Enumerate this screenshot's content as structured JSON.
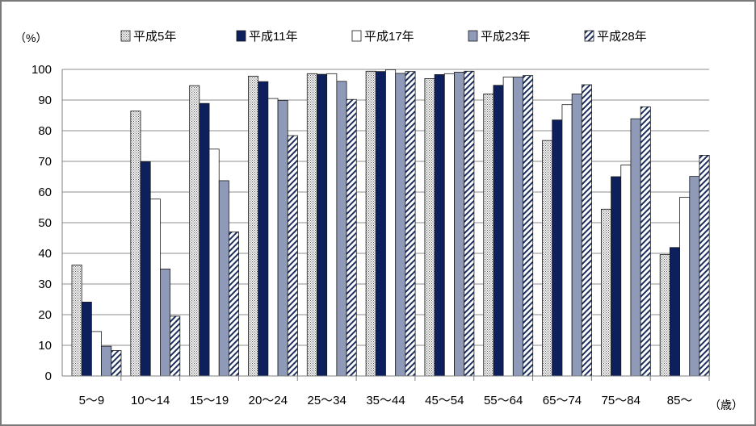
{
  "chart_data": {
    "type": "bar",
    "ylabel": "（%）",
    "xlabel": "（歳）",
    "ylim": [
      0,
      100
    ],
    "yticks": [
      0,
      10,
      20,
      30,
      40,
      50,
      60,
      70,
      80,
      90,
      100
    ],
    "grid": true,
    "legend_position": "top",
    "categories": [
      "5～9",
      "10～14",
      "15～19",
      "20～24",
      "25～34",
      "35～44",
      "45～54",
      "55～64",
      "65～74",
      "75～84",
      "85～"
    ],
    "series": [
      {
        "name": "平成5年",
        "values": [
          36.2,
          86.4,
          94.7,
          97.8,
          98.6,
          99.4,
          97.0,
          92.0,
          76.8,
          54.4,
          39.6
        ],
        "color": "#f2f2f2",
        "pattern": "dots"
      },
      {
        "name": "平成11年",
        "values": [
          24.1,
          69.9,
          88.9,
          96.0,
          98.4,
          99.3,
          98.3,
          94.8,
          83.5,
          65.0,
          41.9
        ],
        "color": "#0d1f5c",
        "pattern": "solid"
      },
      {
        "name": "平成17年",
        "values": [
          14.5,
          57.7,
          74.0,
          90.5,
          98.6,
          99.9,
          98.6,
          97.5,
          88.5,
          68.8,
          58.3
        ],
        "color": "#ffffff",
        "pattern": "solid"
      },
      {
        "name": "平成23年",
        "values": [
          9.7,
          34.9,
          63.7,
          89.9,
          96.1,
          98.7,
          99.1,
          97.5,
          92.0,
          83.9,
          65.1
        ],
        "color": "#8f9ab8",
        "pattern": "solid"
      },
      {
        "name": "平成28年",
        "values": [
          8.3,
          19.5,
          47.0,
          78.4,
          90.2,
          99.3,
          99.4,
          98.0,
          95.0,
          87.8,
          72.0
        ],
        "color": "#ffffff",
        "pattern": "hatch"
      }
    ]
  }
}
